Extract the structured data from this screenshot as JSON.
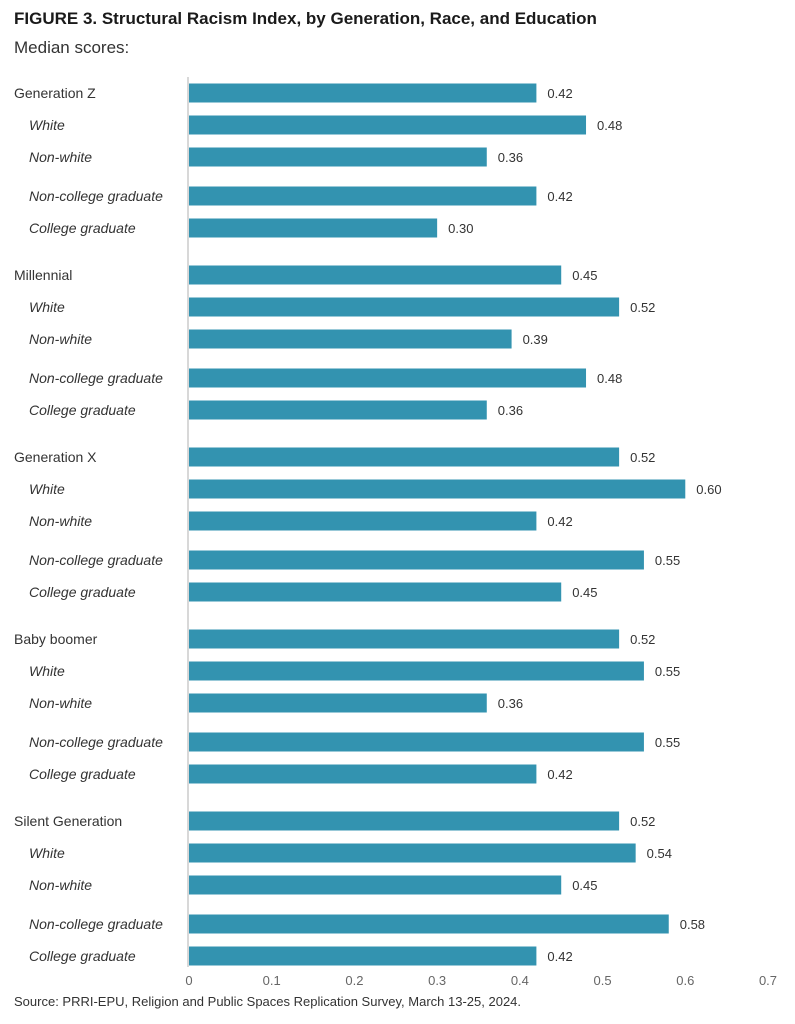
{
  "title": "FIGURE 3. Structural Racism Index, by Generation, Race, and Education",
  "subtitle": "Median scores:",
  "source": "Source: PRRI-EPU, Religion and Public Spaces Replication Survey, March 13-25, 2024.",
  "colors": {
    "bar": "#3393b0",
    "axis": "#cccccc",
    "text": "#333333"
  },
  "chart_data": {
    "type": "bar",
    "orientation": "horizontal",
    "xlim": [
      0,
      0.7
    ],
    "x_ticks": [
      "0",
      "0.1",
      "0.2",
      "0.3",
      "0.4",
      "0.5",
      "0.6",
      "0.7"
    ],
    "grid": false,
    "groups": [
      {
        "name": "Generation Z",
        "rows": [
          {
            "label": "Generation Z",
            "value": 0.42,
            "display": "0.42",
            "kind": "group"
          },
          {
            "label": "White",
            "value": 0.48,
            "display": "0.48",
            "kind": "race"
          },
          {
            "label": "Non-white",
            "value": 0.36,
            "display": "0.36",
            "kind": "race"
          },
          {
            "label": "Non-college graduate",
            "value": 0.42,
            "display": "0.42",
            "kind": "edu"
          },
          {
            "label": "College graduate",
            "value": 0.3,
            "display": "0.30",
            "kind": "edu"
          }
        ]
      },
      {
        "name": "Millennial",
        "rows": [
          {
            "label": "Millennial",
            "value": 0.45,
            "display": "0.45",
            "kind": "group"
          },
          {
            "label": "White",
            "value": 0.52,
            "display": "0.52",
            "kind": "race"
          },
          {
            "label": "Non-white",
            "value": 0.39,
            "display": "0.39",
            "kind": "race"
          },
          {
            "label": "Non-college graduate",
            "value": 0.48,
            "display": "0.48",
            "kind": "edu"
          },
          {
            "label": "College graduate",
            "value": 0.36,
            "display": "0.36",
            "kind": "edu"
          }
        ]
      },
      {
        "name": "Generation X",
        "rows": [
          {
            "label": "Generation X",
            "value": 0.52,
            "display": "0.52",
            "kind": "group"
          },
          {
            "label": "White",
            "value": 0.6,
            "display": "0.60",
            "kind": "race"
          },
          {
            "label": "Non-white",
            "value": 0.42,
            "display": "0.42",
            "kind": "race"
          },
          {
            "label": "Non-college graduate",
            "value": 0.55,
            "display": "0.55",
            "kind": "edu"
          },
          {
            "label": "College graduate",
            "value": 0.45,
            "display": "0.45",
            "kind": "edu"
          }
        ]
      },
      {
        "name": "Baby boomer",
        "rows": [
          {
            "label": "Baby boomer",
            "value": 0.52,
            "display": "0.52",
            "kind": "group"
          },
          {
            "label": "White",
            "value": 0.55,
            "display": "0.55",
            "kind": "race"
          },
          {
            "label": "Non-white",
            "value": 0.36,
            "display": "0.36",
            "kind": "race"
          },
          {
            "label": "Non-college graduate",
            "value": 0.55,
            "display": "0.55",
            "kind": "edu"
          },
          {
            "label": "College graduate",
            "value": 0.42,
            "display": "0.42",
            "kind": "edu"
          }
        ]
      },
      {
        "name": "Silent Generation",
        "rows": [
          {
            "label": "Silent Generation",
            "value": 0.52,
            "display": "0.52",
            "kind": "group"
          },
          {
            "label": "White",
            "value": 0.54,
            "display": "0.54",
            "kind": "race"
          },
          {
            "label": "Non-white",
            "value": 0.45,
            "display": "0.45",
            "kind": "race"
          },
          {
            "label": "Non-college graduate",
            "value": 0.58,
            "display": "0.58",
            "kind": "edu"
          },
          {
            "label": "College graduate",
            "value": 0.42,
            "display": "0.42",
            "kind": "edu"
          }
        ]
      }
    ]
  }
}
